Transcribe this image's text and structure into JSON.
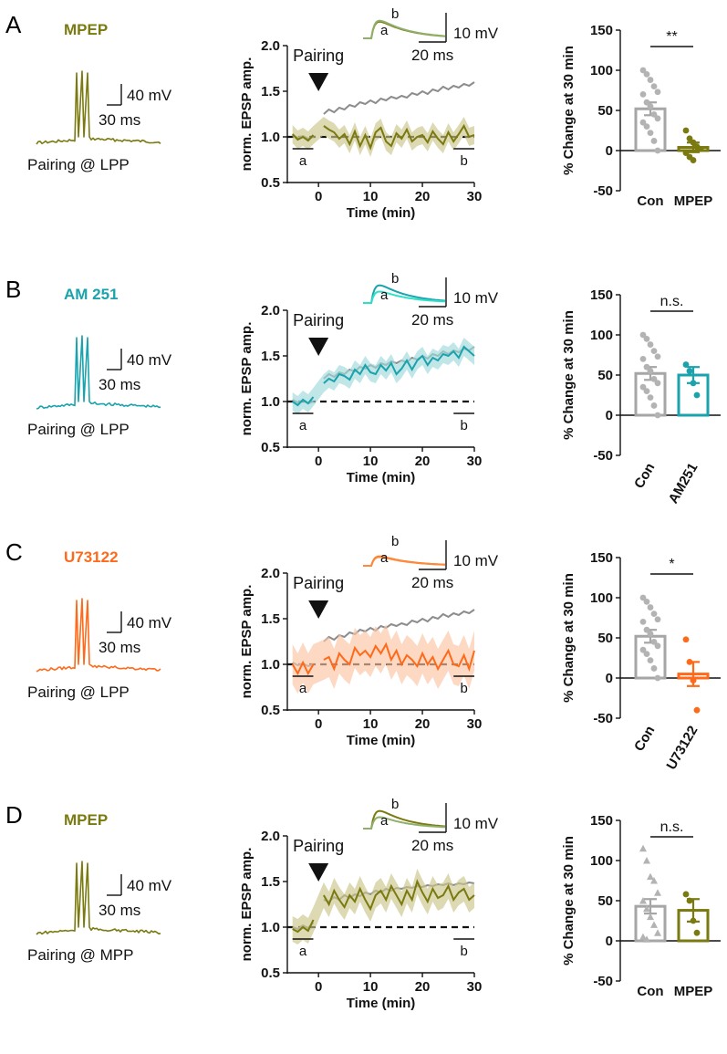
{
  "panels": [
    {
      "label": "A",
      "drug": "MPEP",
      "color": "#7a7a10",
      "light_color": "#8fb06a",
      "band_color": "#c9c48a",
      "trace_caption": "Pairing @ LPP",
      "scalebar_v": "40 mV",
      "scalebar_h": "30 ms",
      "inset_scale_v": "10 mV",
      "inset_scale_h": "20 ms",
      "inset_a": "a",
      "inset_b": "b",
      "pairing": "Pairing",
      "baseline_mark": "a",
      "end_mark": "b",
      "sig": "**",
      "compare_labels": [
        "Con",
        "MPEP"
      ],
      "rotated_labels": false,
      "marker": "circle"
    },
    {
      "label": "B",
      "drug": "AM 251",
      "color": "#1aa3ad",
      "light_color": "#2fe0c8",
      "band_color": "#9fd8dc",
      "trace_caption": "Pairing @ LPP",
      "scalebar_v": "40 mV",
      "scalebar_h": "30 ms",
      "inset_scale_v": "10 mV",
      "inset_scale_h": "20 ms",
      "inset_a": "a",
      "inset_b": "b",
      "pairing": "Pairing",
      "baseline_mark": "a",
      "end_mark": "b",
      "sig": "n.s.",
      "compare_labels": [
        "Con",
        "AM251"
      ],
      "rotated_labels": true,
      "marker": "circle"
    },
    {
      "label": "C",
      "drug": "U73122",
      "color": "#ff6a1a",
      "light_color": "#ff8a3a",
      "band_color": "#fcc3a3",
      "trace_caption": "Pairing @ LPP",
      "scalebar_v": "40 mV",
      "scalebar_h": "30 ms",
      "inset_scale_v": "10 mV",
      "inset_scale_h": "20 ms",
      "inset_a": "a",
      "inset_b": "b",
      "pairing": "Pairing",
      "baseline_mark": "a",
      "end_mark": "b",
      "sig": "*",
      "compare_labels": [
        "Con",
        "U73122"
      ],
      "rotated_labels": true,
      "marker": "circle"
    },
    {
      "label": "D",
      "drug": "MPEP",
      "color": "#7a7a10",
      "light_color": "#8fb06a",
      "band_color": "#c9c48a",
      "trace_caption": "Pairing @ MPP",
      "scalebar_v": "40 mV",
      "scalebar_h": "30 ms",
      "inset_scale_v": "10 mV",
      "inset_scale_h": "20 ms",
      "inset_a": "a",
      "inset_b": "b",
      "pairing": "Pairing",
      "baseline_mark": "a",
      "end_mark": "b",
      "sig": "n.s.",
      "compare_labels": [
        "Con",
        "MPEP"
      ],
      "rotated_labels": false,
      "marker": "triangle"
    }
  ],
  "chart_data": [
    {
      "type": "line",
      "panel": "A",
      "title": "",
      "xlabel": "Time (min)",
      "ylabel": "norm. EPSP amp.",
      "xlim": [
        -6,
        30
      ],
      "ylim": [
        0.5,
        2.0
      ],
      "xticks": [
        0,
        10,
        20,
        30
      ],
      "yticks": [
        0.5,
        1.0,
        1.5,
        2.0
      ],
      "baseline_level": 1.0,
      "pairing_time": 0,
      "series": [
        {
          "name": "Con",
          "color": "#8c8c8c",
          "x": [
            -5,
            -4,
            -3,
            -2,
            -1,
            1,
            2,
            3,
            4,
            5,
            6,
            7,
            8,
            9,
            10,
            11,
            12,
            13,
            14,
            15,
            16,
            17,
            18,
            19,
            20,
            21,
            22,
            23,
            24,
            25,
            26,
            27,
            28,
            29,
            30
          ],
          "y": [
            1.02,
            0.99,
            1.01,
            0.98,
            1.0,
            1.25,
            1.3,
            1.27,
            1.32,
            1.3,
            1.35,
            1.33,
            1.38,
            1.36,
            1.4,
            1.37,
            1.42,
            1.4,
            1.44,
            1.42,
            1.45,
            1.43,
            1.48,
            1.46,
            1.5,
            1.47,
            1.52,
            1.5,
            1.55,
            1.52,
            1.56,
            1.54,
            1.58,
            1.56,
            1.6
          ]
        },
        {
          "name": "MPEP",
          "color": "#7a7a10",
          "band": 0.1,
          "x": [
            -5,
            -4,
            -3,
            -2,
            -1,
            1,
            2,
            3,
            4,
            5,
            6,
            7,
            8,
            9,
            10,
            11,
            12,
            13,
            14,
            15,
            16,
            17,
            18,
            19,
            20,
            21,
            22,
            23,
            24,
            25,
            26,
            27,
            28,
            29,
            30
          ],
          "y": [
            1.03,
            0.97,
            1.0,
            0.96,
            1.02,
            1.12,
            1.08,
            1.05,
            0.98,
            1.03,
            0.92,
            1.06,
            0.9,
            1.02,
            0.88,
            1.05,
            1.1,
            0.95,
            0.9,
            1.04,
            0.98,
            1.08,
            0.95,
            1.0,
            1.02,
            0.94,
            1.06,
            0.98,
            0.92,
            1.05,
            0.95,
            1.03,
            1.12,
            1.0,
            1.02
          ]
        }
      ],
      "inset": {
        "a_peak": 0.85,
        "b_peak": 0.8,
        "a_label": "a",
        "b_label": "b"
      }
    },
    {
      "type": "bar",
      "panel": "A",
      "ylabel": "% Change at 30 min",
      "ylim": [
        -50,
        150
      ],
      "yticks": [
        -50,
        0,
        50,
        100,
        150
      ],
      "categories": [
        "Con",
        "MPEP"
      ],
      "values": [
        52,
        4
      ],
      "sem": [
        8,
        6
      ],
      "points": [
        [
          100,
          95,
          88,
          80,
          73,
          70,
          60,
          55,
          45,
          40,
          35,
          30,
          22,
          12,
          0
        ],
        [
          25,
          15,
          10,
          5,
          2,
          -3,
          -8,
          -12
        ]
      ],
      "significance": "**"
    },
    {
      "type": "line",
      "panel": "B",
      "xlabel": "Time (min)",
      "ylabel": "norm. EPSP amp.",
      "xlim": [
        -6,
        30
      ],
      "ylim": [
        0.5,
        2.0
      ],
      "xticks": [
        0,
        10,
        20,
        30
      ],
      "yticks": [
        0.5,
        1.0,
        1.5,
        2.0
      ],
      "baseline_level": 1.0,
      "pairing_time": 0,
      "series": [
        {
          "name": "Con",
          "color": "#8c8c8c",
          "x": [
            -5,
            -4,
            -3,
            -2,
            -1,
            1,
            2,
            3,
            4,
            5,
            6,
            7,
            8,
            9,
            10,
            11,
            12,
            13,
            14,
            15,
            16,
            17,
            18,
            19,
            20,
            21,
            22,
            23,
            24,
            25,
            26,
            27,
            28,
            29,
            30
          ],
          "y": [
            1.02,
            0.99,
            1.01,
            0.98,
            1.0,
            1.25,
            1.3,
            1.27,
            1.32,
            1.3,
            1.35,
            1.33,
            1.38,
            1.36,
            1.4,
            1.37,
            1.42,
            1.4,
            1.44,
            1.42,
            1.45,
            1.43,
            1.48,
            1.46,
            1.5,
            1.47,
            1.52,
            1.5,
            1.55,
            1.52,
            1.56,
            1.54,
            1.58,
            1.56,
            1.6
          ]
        },
        {
          "name": "AM251",
          "color": "#1aa3ad",
          "band": 0.1,
          "x": [
            -5,
            -4,
            -3,
            -2,
            -1,
            1,
            2,
            3,
            4,
            5,
            6,
            7,
            8,
            9,
            10,
            11,
            12,
            13,
            14,
            15,
            16,
            17,
            18,
            19,
            20,
            21,
            22,
            23,
            24,
            25,
            26,
            27,
            28,
            29,
            30
          ],
          "y": [
            1.0,
            0.96,
            1.02,
            0.98,
            1.05,
            1.2,
            1.25,
            1.22,
            1.3,
            1.28,
            1.24,
            1.35,
            1.3,
            1.4,
            1.32,
            1.3,
            1.4,
            1.34,
            1.42,
            1.3,
            1.36,
            1.45,
            1.35,
            1.45,
            1.5,
            1.4,
            1.48,
            1.45,
            1.52,
            1.5,
            1.55,
            1.48,
            1.6,
            1.55,
            1.5
          ]
        }
      ],
      "inset": {
        "a_peak": 0.55,
        "b_peak": 0.85,
        "a_label": "a",
        "b_label": "b"
      }
    },
    {
      "type": "bar",
      "panel": "B",
      "ylabel": "% Change at 30 min",
      "ylim": [
        -50,
        150
      ],
      "yticks": [
        -50,
        0,
        50,
        100,
        150
      ],
      "categories": [
        "Con",
        "AM251"
      ],
      "values": [
        52,
        50
      ],
      "sem": [
        8,
        10
      ],
      "points": [
        [
          100,
          95,
          88,
          80,
          73,
          70,
          60,
          55,
          45,
          40,
          35,
          30,
          22,
          12,
          0
        ],
        [
          63,
          55,
          40,
          25
        ]
      ],
      "significance": "n.s."
    },
    {
      "type": "line",
      "panel": "C",
      "xlabel": "Time (min)",
      "ylabel": "norm. EPSP amp.",
      "xlim": [
        -6,
        30
      ],
      "ylim": [
        0.5,
        2.0
      ],
      "xticks": [
        0,
        10,
        20,
        30
      ],
      "yticks": [
        0.5,
        1.0,
        1.5,
        2.0
      ],
      "baseline_level": 1.0,
      "pairing_time": 0,
      "series": [
        {
          "name": "Con",
          "color": "#8c8c8c",
          "x": [
            -5,
            -4,
            -3,
            -2,
            -1,
            1,
            2,
            3,
            4,
            5,
            6,
            7,
            8,
            9,
            10,
            11,
            12,
            13,
            14,
            15,
            16,
            17,
            18,
            19,
            20,
            21,
            22,
            23,
            24,
            25,
            26,
            27,
            28,
            29,
            30
          ],
          "y": [
            1.02,
            0.99,
            1.01,
            0.98,
            1.0,
            1.25,
            1.3,
            1.27,
            1.32,
            1.3,
            1.35,
            1.33,
            1.38,
            1.36,
            1.4,
            1.37,
            1.42,
            1.4,
            1.44,
            1.42,
            1.45,
            1.43,
            1.48,
            1.46,
            1.5,
            1.47,
            1.52,
            1.5,
            1.55,
            1.52,
            1.56,
            1.54,
            1.58,
            1.56,
            1.6
          ]
        },
        {
          "name": "U73122",
          "color": "#ff6a1a",
          "band": 0.22,
          "x": [
            -5,
            -4,
            -3,
            -2,
            -1,
            1,
            2,
            3,
            4,
            5,
            6,
            7,
            8,
            9,
            10,
            11,
            12,
            13,
            14,
            15,
            16,
            17,
            18,
            19,
            20,
            21,
            22,
            23,
            24,
            25,
            26,
            27,
            28,
            29,
            30
          ],
          "y": [
            1.0,
            0.9,
            1.02,
            0.9,
            1.0,
            1.05,
            1.08,
            0.95,
            1.12,
            1.05,
            1.0,
            1.18,
            1.1,
            1.15,
            1.08,
            1.2,
            1.12,
            1.22,
            1.05,
            1.15,
            1.0,
            1.1,
            1.05,
            0.98,
            1.12,
            1.0,
            1.08,
            0.95,
            1.05,
            1.15,
            1.0,
            0.98,
            1.1,
            0.95,
            1.15
          ]
        }
      ],
      "inset": {
        "a_peak": 0.42,
        "b_peak": 0.45,
        "a_label": "a",
        "b_label": "b"
      }
    },
    {
      "type": "bar",
      "panel": "C",
      "ylabel": "% Change at 30 min",
      "ylim": [
        -50,
        150
      ],
      "yticks": [
        -50,
        0,
        50,
        100,
        150
      ],
      "categories": [
        "Con",
        "U73122"
      ],
      "values": [
        52,
        5
      ],
      "sem": [
        8,
        15
      ],
      "points": [
        [
          100,
          95,
          88,
          80,
          73,
          70,
          60,
          55,
          45,
          40,
          35,
          30,
          22,
          12,
          0
        ],
        [
          48,
          20,
          -3,
          -40
        ]
      ],
      "significance": "*"
    },
    {
      "type": "line",
      "panel": "D",
      "xlabel": "Time (min)",
      "ylabel": "norm. EPSP amp.",
      "xlim": [
        -6,
        30
      ],
      "ylim": [
        0.5,
        2.0
      ],
      "xticks": [
        0,
        10,
        20,
        30
      ],
      "yticks": [
        0.5,
        1.0,
        1.5,
        2.0
      ],
      "baseline_level": 1.0,
      "pairing_time": 0,
      "series": [
        {
          "name": "Con",
          "color": "#8c8c8c",
          "x": [
            -5,
            -4,
            -3,
            -2,
            -1,
            1,
            2,
            3,
            4,
            5,
            6,
            7,
            8,
            9,
            10,
            11,
            12,
            13,
            14,
            15,
            16,
            17,
            18,
            19,
            20,
            21,
            22,
            23,
            24,
            25,
            26,
            27,
            28,
            29,
            30
          ],
          "y": [
            1.0,
            0.98,
            1.02,
            0.99,
            1.05,
            1.3,
            1.28,
            1.33,
            1.3,
            1.35,
            1.32,
            1.36,
            1.34,
            1.38,
            1.36,
            1.4,
            1.38,
            1.42,
            1.4,
            1.43,
            1.42,
            1.44,
            1.43,
            1.45,
            1.44,
            1.46,
            1.45,
            1.47,
            1.46,
            1.48,
            1.46,
            1.48,
            1.47,
            1.49,
            1.48
          ]
        },
        {
          "name": "MPEP",
          "color": "#7a7a10",
          "band": 0.14,
          "x": [
            -5,
            -4,
            -3,
            -2,
            -1,
            1,
            2,
            3,
            4,
            5,
            6,
            7,
            8,
            9,
            10,
            11,
            12,
            13,
            14,
            15,
            16,
            17,
            18,
            19,
            20,
            21,
            22,
            23,
            24,
            25,
            26,
            27,
            28,
            29,
            30
          ],
          "y": [
            0.98,
            0.95,
            1.0,
            0.96,
            1.08,
            1.35,
            1.25,
            1.4,
            1.3,
            1.22,
            1.35,
            1.28,
            1.42,
            1.3,
            1.2,
            1.35,
            1.4,
            1.3,
            1.45,
            1.35,
            1.25,
            1.4,
            1.3,
            1.5,
            1.38,
            1.28,
            1.42,
            1.32,
            1.35,
            1.45,
            1.3,
            1.38,
            1.42,
            1.3,
            1.35
          ]
        }
      ],
      "inset": {
        "a_peak": 0.55,
        "b_peak": 0.85,
        "a_label": "a",
        "b_label": "b"
      }
    },
    {
      "type": "bar",
      "panel": "D",
      "ylabel": "% Change at 30 min",
      "ylim": [
        -50,
        150
      ],
      "yticks": [
        -50,
        0,
        50,
        100,
        150
      ],
      "categories": [
        "Con",
        "MPEP"
      ],
      "values": [
        43,
        38
      ],
      "sem": [
        9,
        14
      ],
      "points": [
        [
          115,
          100,
          80,
          75,
          60,
          50,
          40,
          30,
          20,
          10,
          5,
          2
        ],
        [
          58,
          50,
          25,
          10
        ]
      ],
      "significance": "n.s."
    }
  ]
}
